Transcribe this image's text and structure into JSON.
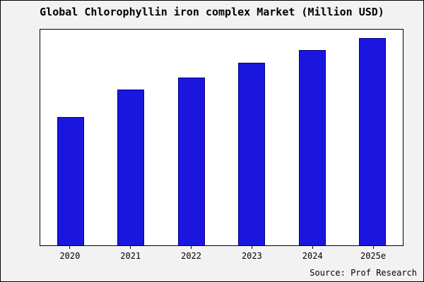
{
  "title": "Global Chlorophyllin iron complex Market (Million USD)",
  "source": "Source: Prof Research",
  "colors": {
    "bar_fill": "#1a16e0",
    "bar_edge": "#000080",
    "background": "#f2f2f2",
    "plot_background": "#ffffff"
  },
  "chart_data": {
    "type": "bar",
    "categories": [
      "2020",
      "2021",
      "2022",
      "2023",
      "2024",
      "2025e"
    ],
    "values": [
      62,
      75,
      81,
      88,
      94,
      100
    ],
    "title": "Global Chlorophyllin iron complex Market (Million USD)",
    "xlabel": "",
    "ylabel": "",
    "ylim": [
      0,
      104
    ],
    "grid": false,
    "legend": false,
    "annotation": "Source: Prof Research"
  }
}
